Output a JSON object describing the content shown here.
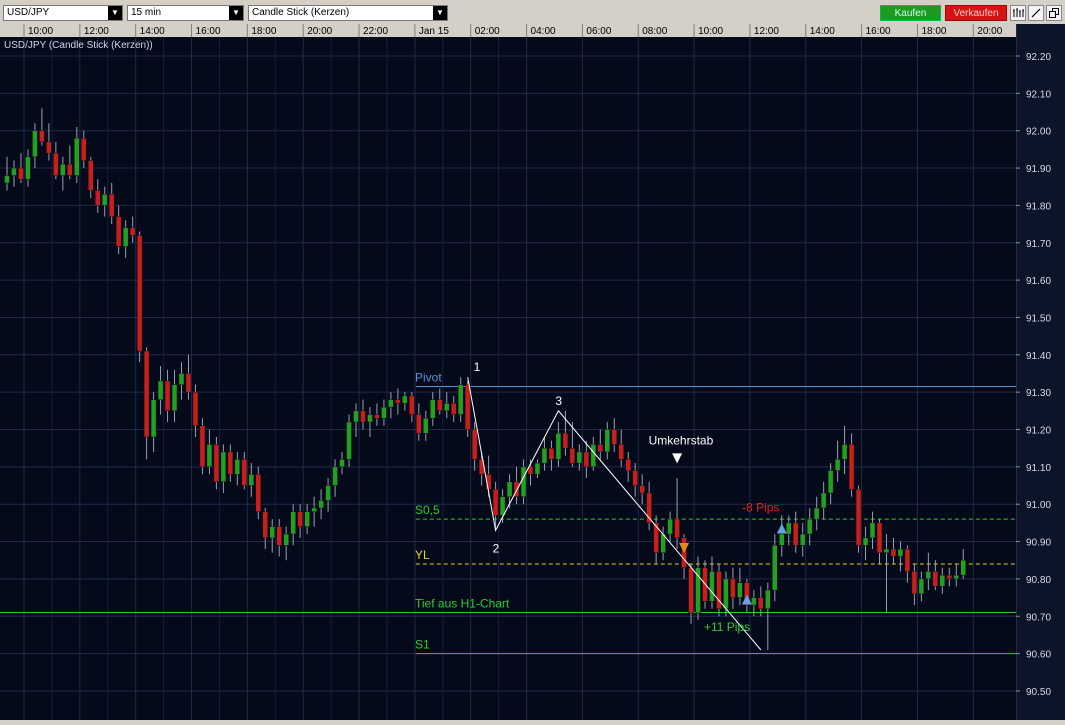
{
  "toolbar": {
    "symbol": "USD/JPY",
    "interval": "15 min",
    "chart_type": "Candle Stick (Kerzen)",
    "buy_label": "Kaufen",
    "sell_label": "Verkaufen",
    "icons": [
      "bar-chart-icon",
      "pencil-icon",
      "restore-window-icon"
    ]
  },
  "colors": {
    "background": "#050a1a",
    "grid": "#1d2a4a",
    "bull": "#22a022",
    "bear": "#c81e1e",
    "pivot": "#5b8fd6",
    "s05": "#2ecc2e",
    "yl": "#d8d82a",
    "low_h1": "#2ecc2e",
    "s1": "#2ecc2e",
    "red_text": "#e02020",
    "green_text": "#2ecc2e"
  },
  "chart_data": {
    "type": "candlestick",
    "title": "USD/JPY (Candle Stick (Kerzen))",
    "xlabel": "",
    "ylabel": "",
    "ylim": [
      90.44,
      92.3
    ],
    "y_ticks": [
      "92.20",
      "92.10",
      "92.00",
      "91.90",
      "91.80",
      "91.70",
      "91.60",
      "91.50",
      "91.40",
      "91.30",
      "91.20",
      "91.10",
      "91.00",
      "90.90",
      "90.80",
      "90.70",
      "90.60",
      "90.50"
    ],
    "x_ticks": [
      "10:00",
      "12:00",
      "14:00",
      "16:00",
      "18:00",
      "20:00",
      "22:00",
      "Jan 15",
      "02:00",
      "04:00",
      "06:00",
      "08:00",
      "10:00",
      "12:00",
      "14:00",
      "16:00",
      "18:00",
      "20:00"
    ],
    "pattern_points": [
      {
        "label": "1",
        "bar": 66,
        "price": 91.34
      },
      {
        "label": "2",
        "bar": 70,
        "price": 90.93
      },
      {
        "label": "3",
        "bar": 79,
        "price": 91.25
      },
      {
        "label": "",
        "bar": 108,
        "price": 90.61
      }
    ],
    "levels": [
      {
        "name": "Pivot",
        "value": 91.315,
        "style": "solid",
        "from_bar": 59,
        "color_key": "pivot"
      },
      {
        "name": "S0,5",
        "value": 90.96,
        "style": "dashed",
        "from_bar": 59,
        "color_key": "s05"
      },
      {
        "name": "YL",
        "value": 90.84,
        "style": "dashed",
        "from_bar": 59,
        "color_key": "yl"
      },
      {
        "name": "Tief aus H1-Chart",
        "value": 90.71,
        "style": "solid",
        "from_bar": -1,
        "color_key": "low_h1"
      },
      {
        "name": "S1",
        "value": 90.6,
        "style": "solid",
        "from_bar": 59,
        "color_key": "s1"
      }
    ],
    "annotations": [
      {
        "text": "Umkehrstab",
        "bar": 96,
        "price": 91.16,
        "color_key": "white"
      },
      {
        "text": "-8 Pips",
        "bar": 108,
        "price": 90.98,
        "color_key": "red_text"
      },
      {
        "text": "+11 Pips",
        "bar": 103,
        "price": 90.66,
        "color_key": "green_text"
      }
    ],
    "markers": [
      {
        "type": "down-arrow",
        "bar": 96,
        "price": 91.12,
        "color": "#ffffff"
      },
      {
        "type": "down-arrow",
        "bar": 97,
        "price": 90.88,
        "color": "#e08a20"
      },
      {
        "type": "up-arrow",
        "bar": 106,
        "price": 90.745,
        "color": "#6aa0e0"
      },
      {
        "type": "up-arrow",
        "bar": 111,
        "price": 90.935,
        "color": "#6aa0e0"
      }
    ],
    "candles": [
      {
        "o": 91.86,
        "h": 91.93,
        "l": 91.84,
        "c": 91.88
      },
      {
        "o": 91.88,
        "h": 91.92,
        "l": 91.85,
        "c": 91.9
      },
      {
        "o": 91.9,
        "h": 91.94,
        "l": 91.86,
        "c": 91.87
      },
      {
        "o": 91.87,
        "h": 91.95,
        "l": 91.85,
        "c": 91.93
      },
      {
        "o": 91.93,
        "h": 92.02,
        "l": 91.9,
        "c": 92.0
      },
      {
        "o": 92.0,
        "h": 92.06,
        "l": 91.96,
        "c": 91.97
      },
      {
        "o": 91.97,
        "h": 92.02,
        "l": 91.92,
        "c": 91.94
      },
      {
        "o": 91.94,
        "h": 91.97,
        "l": 91.87,
        "c": 91.88
      },
      {
        "o": 91.88,
        "h": 91.93,
        "l": 91.84,
        "c": 91.91
      },
      {
        "o": 91.91,
        "h": 91.96,
        "l": 91.87,
        "c": 91.88
      },
      {
        "o": 91.88,
        "h": 92.01,
        "l": 91.86,
        "c": 91.98
      },
      {
        "o": 91.98,
        "h": 92.0,
        "l": 91.9,
        "c": 91.92
      },
      {
        "o": 91.92,
        "h": 91.93,
        "l": 91.82,
        "c": 91.84
      },
      {
        "o": 91.84,
        "h": 91.87,
        "l": 91.78,
        "c": 91.8
      },
      {
        "o": 91.8,
        "h": 91.85,
        "l": 91.77,
        "c": 91.83
      },
      {
        "o": 91.83,
        "h": 91.86,
        "l": 91.75,
        "c": 91.77
      },
      {
        "o": 91.77,
        "h": 91.8,
        "l": 91.67,
        "c": 91.69
      },
      {
        "o": 91.69,
        "h": 91.76,
        "l": 91.66,
        "c": 91.74
      },
      {
        "o": 91.74,
        "h": 91.77,
        "l": 91.7,
        "c": 91.72
      },
      {
        "o": 91.72,
        "h": 91.73,
        "l": 91.38,
        "c": 91.41
      },
      {
        "o": 91.41,
        "h": 91.42,
        "l": 91.12,
        "c": 91.18
      },
      {
        "o": 91.18,
        "h": 91.3,
        "l": 91.14,
        "c": 91.28
      },
      {
        "o": 91.28,
        "h": 91.37,
        "l": 91.24,
        "c": 91.33
      },
      {
        "o": 91.33,
        "h": 91.36,
        "l": 91.22,
        "c": 91.25
      },
      {
        "o": 91.25,
        "h": 91.36,
        "l": 91.22,
        "c": 91.32
      },
      {
        "o": 91.32,
        "h": 91.38,
        "l": 91.28,
        "c": 91.35
      },
      {
        "o": 91.35,
        "h": 91.4,
        "l": 91.28,
        "c": 91.3
      },
      {
        "o": 91.3,
        "h": 91.32,
        "l": 91.18,
        "c": 91.21
      },
      {
        "o": 91.21,
        "h": 91.23,
        "l": 91.08,
        "c": 91.1
      },
      {
        "o": 91.1,
        "h": 91.2,
        "l": 91.08,
        "c": 91.16
      },
      {
        "o": 91.16,
        "h": 91.18,
        "l": 91.04,
        "c": 91.06
      },
      {
        "o": 91.06,
        "h": 91.16,
        "l": 91.03,
        "c": 91.14
      },
      {
        "o": 91.14,
        "h": 91.16,
        "l": 91.06,
        "c": 91.08
      },
      {
        "o": 91.08,
        "h": 91.14,
        "l": 91.05,
        "c": 91.12
      },
      {
        "o": 91.12,
        "h": 91.14,
        "l": 91.04,
        "c": 91.05
      },
      {
        "o": 91.05,
        "h": 91.11,
        "l": 91.02,
        "c": 91.08
      },
      {
        "o": 91.08,
        "h": 91.1,
        "l": 90.96,
        "c": 90.98
      },
      {
        "o": 90.98,
        "h": 90.99,
        "l": 90.88,
        "c": 90.91
      },
      {
        "o": 90.91,
        "h": 90.96,
        "l": 90.87,
        "c": 90.94
      },
      {
        "o": 90.94,
        "h": 90.96,
        "l": 90.86,
        "c": 90.89
      },
      {
        "o": 90.89,
        "h": 90.94,
        "l": 90.85,
        "c": 90.92
      },
      {
        "o": 90.92,
        "h": 91.0,
        "l": 90.89,
        "c": 90.98
      },
      {
        "o": 90.98,
        "h": 91.0,
        "l": 90.91,
        "c": 90.94
      },
      {
        "o": 90.94,
        "h": 91.0,
        "l": 90.92,
        "c": 90.98
      },
      {
        "o": 90.98,
        "h": 91.02,
        "l": 90.94,
        "c": 90.99
      },
      {
        "o": 90.99,
        "h": 91.04,
        "l": 90.96,
        "c": 91.01
      },
      {
        "o": 91.01,
        "h": 91.07,
        "l": 90.98,
        "c": 91.05
      },
      {
        "o": 91.05,
        "h": 91.12,
        "l": 91.02,
        "c": 91.1
      },
      {
        "o": 91.1,
        "h": 91.14,
        "l": 91.08,
        "c": 91.12
      },
      {
        "o": 91.12,
        "h": 91.24,
        "l": 91.1,
        "c": 91.22
      },
      {
        "o": 91.22,
        "h": 91.27,
        "l": 91.18,
        "c": 91.25
      },
      {
        "o": 91.25,
        "h": 91.28,
        "l": 91.2,
        "c": 91.22
      },
      {
        "o": 91.22,
        "h": 91.26,
        "l": 91.18,
        "c": 91.24
      },
      {
        "o": 91.24,
        "h": 91.27,
        "l": 91.21,
        "c": 91.23
      },
      {
        "o": 91.23,
        "h": 91.28,
        "l": 91.21,
        "c": 91.26
      },
      {
        "o": 91.26,
        "h": 91.3,
        "l": 91.23,
        "c": 91.28
      },
      {
        "o": 91.28,
        "h": 91.31,
        "l": 91.24,
        "c": 91.27
      },
      {
        "o": 91.27,
        "h": 91.3,
        "l": 91.25,
        "c": 91.29
      },
      {
        "o": 91.29,
        "h": 91.3,
        "l": 91.22,
        "c": 91.24
      },
      {
        "o": 91.24,
        "h": 91.27,
        "l": 91.17,
        "c": 91.19
      },
      {
        "o": 91.19,
        "h": 91.25,
        "l": 91.17,
        "c": 91.23
      },
      {
        "o": 91.23,
        "h": 91.3,
        "l": 91.21,
        "c": 91.28
      },
      {
        "o": 91.28,
        "h": 91.31,
        "l": 91.24,
        "c": 91.25
      },
      {
        "o": 91.25,
        "h": 91.3,
        "l": 91.23,
        "c": 91.27
      },
      {
        "o": 91.27,
        "h": 91.29,
        "l": 91.22,
        "c": 91.24
      },
      {
        "o": 91.24,
        "h": 91.34,
        "l": 91.22,
        "c": 91.32
      },
      {
        "o": 91.32,
        "h": 91.33,
        "l": 91.18,
        "c": 91.2
      },
      {
        "o": 91.2,
        "h": 91.22,
        "l": 91.09,
        "c": 91.12
      },
      {
        "o": 91.12,
        "h": 91.14,
        "l": 91.05,
        "c": 91.08
      },
      {
        "o": 91.08,
        "h": 91.13,
        "l": 91.02,
        "c": 91.04
      },
      {
        "o": 91.04,
        "h": 91.06,
        "l": 90.93,
        "c": 90.97
      },
      {
        "o": 90.97,
        "h": 91.04,
        "l": 90.95,
        "c": 91.02
      },
      {
        "o": 91.02,
        "h": 91.08,
        "l": 90.99,
        "c": 91.06
      },
      {
        "o": 91.06,
        "h": 91.1,
        "l": 91.0,
        "c": 91.02
      },
      {
        "o": 91.02,
        "h": 91.12,
        "l": 91.0,
        "c": 91.1
      },
      {
        "o": 91.1,
        "h": 91.12,
        "l": 91.05,
        "c": 91.08
      },
      {
        "o": 91.08,
        "h": 91.12,
        "l": 91.07,
        "c": 91.11
      },
      {
        "o": 91.11,
        "h": 91.18,
        "l": 91.09,
        "c": 91.15
      },
      {
        "o": 91.15,
        "h": 91.17,
        "l": 91.09,
        "c": 91.12
      },
      {
        "o": 91.12,
        "h": 91.22,
        "l": 91.1,
        "c": 91.19
      },
      {
        "o": 91.19,
        "h": 91.25,
        "l": 91.13,
        "c": 91.15
      },
      {
        "o": 91.15,
        "h": 91.22,
        "l": 91.1,
        "c": 91.11
      },
      {
        "o": 91.11,
        "h": 91.16,
        "l": 91.09,
        "c": 91.14
      },
      {
        "o": 91.14,
        "h": 91.17,
        "l": 91.07,
        "c": 91.1
      },
      {
        "o": 91.1,
        "h": 91.18,
        "l": 91.09,
        "c": 91.16
      },
      {
        "o": 91.16,
        "h": 91.2,
        "l": 91.12,
        "c": 91.14
      },
      {
        "o": 91.14,
        "h": 91.22,
        "l": 91.12,
        "c": 91.2
      },
      {
        "o": 91.2,
        "h": 91.23,
        "l": 91.14,
        "c": 91.16
      },
      {
        "o": 91.16,
        "h": 91.2,
        "l": 91.1,
        "c": 91.12
      },
      {
        "o": 91.12,
        "h": 91.14,
        "l": 91.06,
        "c": 91.09
      },
      {
        "o": 91.09,
        "h": 91.11,
        "l": 91.02,
        "c": 91.05
      },
      {
        "o": 91.05,
        "h": 91.08,
        "l": 91.0,
        "c": 91.03
      },
      {
        "o": 91.03,
        "h": 91.06,
        "l": 90.93,
        "c": 90.95
      },
      {
        "o": 90.95,
        "h": 90.97,
        "l": 90.84,
        "c": 90.87
      },
      {
        "o": 90.87,
        "h": 90.94,
        "l": 90.85,
        "c": 90.92
      },
      {
        "o": 90.92,
        "h": 90.98,
        "l": 90.9,
        "c": 90.96
      },
      {
        "o": 90.96,
        "h": 91.07,
        "l": 90.88,
        "c": 90.91
      },
      {
        "o": 90.91,
        "h": 90.92,
        "l": 90.8,
        "c": 90.83
      },
      {
        "o": 90.83,
        "h": 90.84,
        "l": 90.68,
        "c": 90.71
      },
      {
        "o": 90.71,
        "h": 90.86,
        "l": 90.69,
        "c": 90.83
      },
      {
        "o": 90.83,
        "h": 90.85,
        "l": 90.72,
        "c": 90.74
      },
      {
        "o": 90.74,
        "h": 90.86,
        "l": 90.72,
        "c": 90.82
      },
      {
        "o": 90.82,
        "h": 90.84,
        "l": 90.7,
        "c": 90.72
      },
      {
        "o": 90.72,
        "h": 90.82,
        "l": 90.7,
        "c": 90.8
      },
      {
        "o": 90.8,
        "h": 90.83,
        "l": 90.72,
        "c": 90.75
      },
      {
        "o": 90.75,
        "h": 90.83,
        "l": 90.73,
        "c": 90.79
      },
      {
        "o": 90.79,
        "h": 90.8,
        "l": 90.71,
        "c": 90.73
      },
      {
        "o": 90.73,
        "h": 90.77,
        "l": 90.7,
        "c": 90.75
      },
      {
        "o": 90.75,
        "h": 90.78,
        "l": 90.7,
        "c": 90.72
      },
      {
        "o": 90.72,
        "h": 90.79,
        "l": 90.61,
        "c": 90.77
      },
      {
        "o": 90.77,
        "h": 90.92,
        "l": 90.74,
        "c": 90.89
      },
      {
        "o": 90.89,
        "h": 90.97,
        "l": 90.86,
        "c": 90.92
      },
      {
        "o": 90.92,
        "h": 90.97,
        "l": 90.89,
        "c": 90.95
      },
      {
        "o": 90.95,
        "h": 90.98,
        "l": 90.87,
        "c": 90.89
      },
      {
        "o": 90.89,
        "h": 90.95,
        "l": 90.86,
        "c": 90.92
      },
      {
        "o": 90.92,
        "h": 90.99,
        "l": 90.89,
        "c": 90.96
      },
      {
        "o": 90.96,
        "h": 91.02,
        "l": 90.93,
        "c": 90.99
      },
      {
        "o": 90.99,
        "h": 91.06,
        "l": 90.96,
        "c": 91.03
      },
      {
        "o": 91.03,
        "h": 91.11,
        "l": 91.0,
        "c": 91.09
      },
      {
        "o": 91.09,
        "h": 91.17,
        "l": 91.06,
        "c": 91.12
      },
      {
        "o": 91.12,
        "h": 91.21,
        "l": 91.08,
        "c": 91.16
      },
      {
        "o": 91.16,
        "h": 91.19,
        "l": 91.02,
        "c": 91.04
      },
      {
        "o": 91.04,
        "h": 91.05,
        "l": 90.87,
        "c": 90.89
      },
      {
        "o": 90.89,
        "h": 90.94,
        "l": 90.85,
        "c": 90.91
      },
      {
        "o": 90.91,
        "h": 90.98,
        "l": 90.88,
        "c": 90.95
      },
      {
        "o": 90.95,
        "h": 90.96,
        "l": 90.84,
        "c": 90.87
      },
      {
        "o": 90.87,
        "h": 90.92,
        "l": 90.71,
        "c": 90.88
      },
      {
        "o": 90.88,
        "h": 90.91,
        "l": 90.84,
        "c": 90.86
      },
      {
        "o": 90.86,
        "h": 90.9,
        "l": 90.82,
        "c": 90.88
      },
      {
        "o": 90.88,
        "h": 90.89,
        "l": 90.79,
        "c": 90.82
      },
      {
        "o": 90.82,
        "h": 90.84,
        "l": 90.73,
        "c": 90.76
      },
      {
        "o": 90.76,
        "h": 90.82,
        "l": 90.74,
        "c": 90.8
      },
      {
        "o": 90.8,
        "h": 90.87,
        "l": 90.77,
        "c": 90.82
      },
      {
        "o": 90.82,
        "h": 90.85,
        "l": 90.77,
        "c": 90.78
      },
      {
        "o": 90.78,
        "h": 90.83,
        "l": 90.76,
        "c": 90.81
      },
      {
        "o": 90.81,
        "h": 90.83,
        "l": 90.78,
        "c": 90.8
      },
      {
        "o": 90.8,
        "h": 90.84,
        "l": 90.78,
        "c": 90.81
      },
      {
        "o": 90.81,
        "h": 90.88,
        "l": 90.8,
        "c": 90.85
      }
    ]
  }
}
